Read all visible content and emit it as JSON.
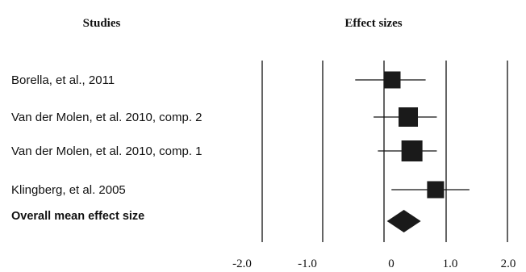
{
  "chart_data": {
    "type": "forest",
    "headers": {
      "studies": "Studies",
      "effects": "Effect sizes"
    },
    "x_ticks": [
      -2.0,
      -1.0,
      0,
      1.0,
      2.0
    ],
    "x_tick_labels": [
      "-2.0",
      "-1.0",
      "0",
      "1.0",
      "2.0"
    ],
    "xlim": [
      -2.0,
      2.0
    ],
    "vertical_lines_at": [
      -2.0,
      -1.0,
      0,
      1.0,
      2.0
    ],
    "studies": [
      {
        "label": "Borella, et al., 2011",
        "effect": 0.0,
        "ci": [
          -0.47,
          0.67
        ]
      },
      {
        "label": "Van der Molen, et al. 2010, comp. 2",
        "effect": 0.26,
        "ci": [
          -0.17,
          0.85
        ]
      },
      {
        "label": "Van der Molen, et al. 2010, comp. 1",
        "effect": 0.32,
        "ci": [
          -0.1,
          0.85
        ]
      },
      {
        "label": "Klingberg, et al. 2005",
        "effect": 0.7,
        "ci": [
          0.12,
          1.38
        ]
      }
    ],
    "overall": {
      "label": "Overall mean effect size",
      "effect": 0.32,
      "ci": [
        0.03,
        0.6
      ]
    },
    "colors": {
      "marker": "#1a1a1a",
      "line": "#111111"
    }
  }
}
